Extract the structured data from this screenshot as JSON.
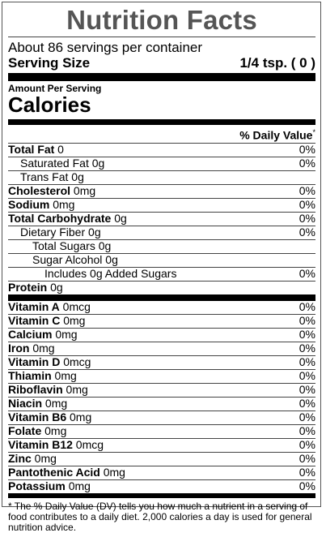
{
  "title": "Nutrition Facts",
  "servings_per_container": "About 86 servings per container",
  "serving_size": {
    "label": "Serving Size",
    "value": "1/4 tsp. ( 0 )"
  },
  "amount_per_serving": "Amount Per Serving",
  "calories_label": "Calories",
  "daily_value_header": "% Daily Value",
  "daily_value_marker": "*",
  "nutrients": [
    {
      "name": "Total Fat",
      "amount": " 0",
      "dv": "0%",
      "bold": true,
      "indent": 0
    },
    {
      "name": "Saturated Fat",
      "amount": " 0g",
      "dv": "0%",
      "bold": false,
      "indent": 1
    },
    {
      "name": "Trans Fat",
      "amount": " 0g",
      "dv": "",
      "bold": false,
      "indent": 1
    },
    {
      "name": "Cholesterol",
      "amount": " 0mg",
      "dv": "0%",
      "bold": true,
      "indent": 0
    },
    {
      "name": "Sodium",
      "amount": " 0mg",
      "dv": "0%",
      "bold": true,
      "indent": 0
    },
    {
      "name": "Total Carbohydrate",
      "amount": " 0g",
      "dv": "0%",
      "bold": true,
      "indent": 0
    },
    {
      "name": "Dietary Fiber",
      "amount": " 0g",
      "dv": "0%",
      "bold": false,
      "indent": 1
    },
    {
      "name": "Total Sugars",
      "amount": " 0g",
      "dv": "",
      "bold": false,
      "indent": 2
    },
    {
      "name": "Sugar Alcohol",
      "amount": " 0g",
      "dv": "",
      "bold": false,
      "indent": 2
    },
    {
      "name": "Includes 0g Added Sugars",
      "amount": "",
      "dv": "0%",
      "bold": false,
      "indent": 3
    },
    {
      "name": "Protein",
      "amount": " 0g",
      "dv": "",
      "bold": true,
      "indent": 0
    }
  ],
  "vitamins": [
    {
      "name": "Vitamin A",
      "amount": " 0mcg",
      "dv": "0%"
    },
    {
      "name": "Vitamin C",
      "amount": " 0mg",
      "dv": "0%"
    },
    {
      "name": "Calcium",
      "amount": " 0mg",
      "dv": "0%"
    },
    {
      "name": "Iron",
      "amount": " 0mg",
      "dv": "0%"
    },
    {
      "name": "Vitamin D",
      "amount": " 0mcg",
      "dv": "0%"
    },
    {
      "name": "Thiamin",
      "amount": " 0mg",
      "dv": "0%"
    },
    {
      "name": "Riboflavin",
      "amount": " 0mg",
      "dv": "0%"
    },
    {
      "name": "Niacin",
      "amount": " 0mg",
      "dv": "0%"
    },
    {
      "name": "Vitamin B6",
      "amount": " 0mg",
      "dv": "0%"
    },
    {
      "name": "Folate",
      "amount": " 0mg",
      "dv": "0%"
    },
    {
      "name": "Vitamin B12",
      "amount": " 0mcg",
      "dv": "0%"
    },
    {
      "name": "Zinc",
      "amount": " 0mg",
      "dv": "0%"
    },
    {
      "name": "Pantothenic Acid",
      "amount": " 0mg",
      "dv": "0%"
    },
    {
      "name": "Potassium",
      "amount": " 0mg",
      "dv": "0%"
    }
  ],
  "footnote": "* The % Daily Value (DV) tells you how much a nutrient in a serving of food contributes to a daily diet. 2,000 calories a day is used for general nutrition advice."
}
